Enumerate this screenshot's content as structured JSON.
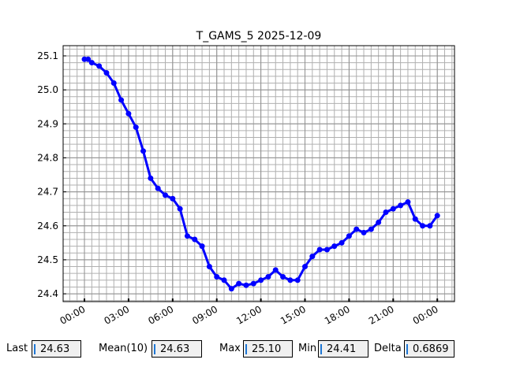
{
  "chart_data": {
    "type": "line",
    "title": "T_GAMS_5 2025-12-09",
    "x": [
      0,
      0.25,
      0.5,
      1,
      1.5,
      2,
      2.5,
      3,
      3.5,
      4,
      4.5,
      5,
      5.5,
      6,
      6.5,
      7,
      7.5,
      8,
      8.5,
      9,
      9.5,
      10,
      10.5,
      11,
      11.5,
      12,
      12.5,
      13,
      13.5,
      14,
      14.5,
      15,
      15.5,
      16,
      16.5,
      17,
      17.5,
      18,
      18.5,
      19,
      19.5,
      20,
      20.5,
      21,
      21.5,
      22,
      22.5,
      23,
      23.5,
      24
    ],
    "series": [
      {
        "color": "#0000ff",
        "values": [
          25.09,
          25.09,
          25.08,
          25.07,
          25.05,
          25.02,
          24.97,
          24.93,
          24.89,
          24.82,
          24.74,
          24.71,
          24.69,
          24.68,
          24.65,
          24.57,
          24.56,
          24.54,
          24.48,
          24.45,
          24.44,
          24.415,
          24.43,
          24.425,
          24.43,
          24.44,
          24.45,
          24.47,
          24.45,
          24.44,
          24.44,
          24.48,
          24.51,
          24.53,
          24.53,
          24.54,
          24.55,
          24.57,
          24.59,
          24.58,
          24.59,
          24.61,
          24.64,
          24.65,
          24.66,
          24.67,
          24.62,
          24.6,
          24.6,
          24.63
        ]
      }
    ],
    "xlim": [
      -1.45,
      25.17
    ],
    "ylim": [
      24.377,
      25.13
    ],
    "xticks": [
      {
        "value": 0,
        "label": "00:00"
      },
      {
        "value": 3,
        "label": "03:00"
      },
      {
        "value": 6,
        "label": "06:00"
      },
      {
        "value": 9,
        "label": "09:00"
      },
      {
        "value": 12,
        "label": "12:00"
      },
      {
        "value": 15,
        "label": "15:00"
      },
      {
        "value": 18,
        "label": "18:00"
      },
      {
        "value": 21,
        "label": "21:00"
      },
      {
        "value": 24,
        "label": "00:00"
      }
    ],
    "yticks": [
      24.4,
      24.5,
      24.6,
      24.7,
      24.8,
      24.9,
      {
        "value": 25,
        "label": "25.0"
      },
      25.1
    ],
    "grid": true,
    "minor_grid": {
      "x_step": 0.5,
      "y_step": 0.02
    }
  },
  "stats": [
    {
      "label": "Last",
      "value": "24.63"
    },
    {
      "label": "Mean(10)",
      "value": "24.63"
    },
    {
      "label": "Max",
      "value": "25.10"
    },
    {
      "label": "Min",
      "value": "24.41"
    },
    {
      "label": "Delta",
      "value": "0.6869"
    }
  ]
}
